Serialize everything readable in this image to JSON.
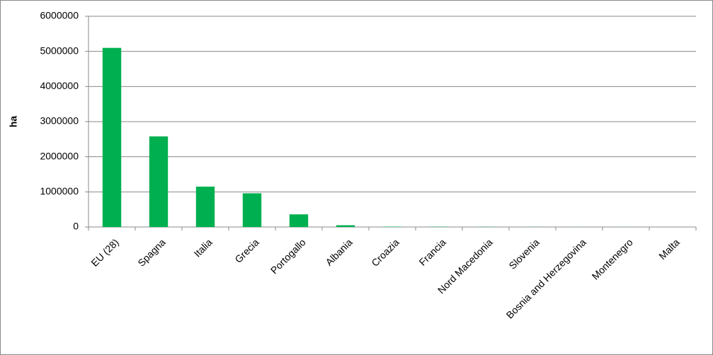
{
  "chart_data": {
    "type": "bar",
    "y_label": "ha",
    "categories": [
      "EU (28)",
      "Spagna",
      "Italia",
      "Grecia",
      "Portogallo",
      "Albania",
      "Croazia",
      "Francia",
      "Nord Macedonia",
      "Slovenia",
      "Bosnia and Herzegovina",
      "Montenegro",
      "Malta"
    ],
    "values": [
      5100000,
      2580000,
      1150000,
      960000,
      360000,
      50000,
      10000,
      8000,
      5000,
      3000,
      2000,
      2000,
      1000
    ],
    "color": "#00b050",
    "ylim": [
      0,
      6000000
    ],
    "yticks": [
      0,
      1000000,
      2000000,
      3000000,
      4000000,
      5000000,
      6000000
    ],
    "grid": true
  }
}
